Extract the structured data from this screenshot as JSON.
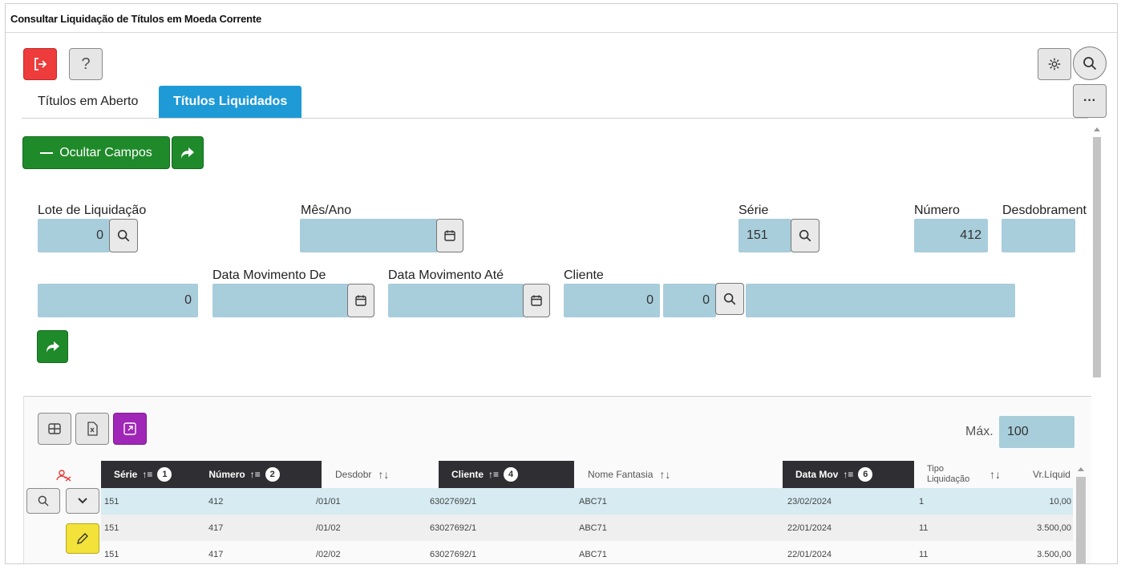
{
  "window": {
    "title": "Consultar Liquidação de Títulos em Moeda Corrente"
  },
  "toolbar": {
    "exit_icon": "exit-icon",
    "help_label": "?"
  },
  "tabs": [
    {
      "label": "Títulos em Aberto",
      "active": false
    },
    {
      "label": "Títulos Liquidados",
      "active": true
    }
  ],
  "actions": {
    "hide_fields_label": "Ocultar Campos",
    "more_label": "···"
  },
  "form": {
    "lote_label": "Lote de Liquidação",
    "lote_value": "0",
    "mesano_label": "Mês/Ano",
    "mesano_value": "",
    "serie_label": "Série",
    "serie_value": "151",
    "numero_label": "Número",
    "numero_value": "412",
    "desdobramento_label": "Desdobrament",
    "desdobramento_value": "",
    "unlabeled_value": "0",
    "data_de_label": "Data Movimento De",
    "data_de_value": "",
    "data_ate_label": "Data Movimento Até",
    "data_ate_value": "",
    "cliente_label": "Cliente",
    "cliente_code": "0",
    "cliente_sub": "0",
    "cliente_name": ""
  },
  "grid": {
    "max_label": "Máx.",
    "max_value": "100",
    "columns": [
      {
        "label": "Série",
        "sort": "1"
      },
      {
        "label": "Número",
        "sort": "2"
      },
      {
        "label": "Desdobr"
      },
      {
        "label": "Cliente",
        "sort": "4"
      },
      {
        "label": "Nome Fantasia"
      },
      {
        "label": "Data Mov",
        "sort": "6"
      },
      {
        "label": "Tipo Liquidação"
      },
      {
        "label": "Vr.Líquid"
      }
    ],
    "rows": [
      {
        "serie": "151",
        "numero": "412",
        "desdobr": "/01/01",
        "cliente": "63027692/1",
        "fantasia": "ABC71",
        "data": "23/02/2024",
        "tipo": "1",
        "valor": "10,00"
      },
      {
        "serie": "151",
        "numero": "417",
        "desdobr": "/01/02",
        "cliente": "63027692/1",
        "fantasia": "ABC71",
        "data": "22/01/2024",
        "tipo": "11",
        "valor": "3.500,00"
      },
      {
        "serie": "151",
        "numero": "417",
        "desdobr": "/02/02",
        "cliente": "63027692/1",
        "fantasia": "ABC71",
        "data": "22/01/2024",
        "tipo": "11",
        "valor": "3.500,00"
      }
    ]
  },
  "colors": {
    "accent": "#1e9ad6",
    "field": "#a8cddb",
    "green": "#1f8a2a",
    "red": "#ee3b3b",
    "purple": "#a026b8",
    "edit": "#f2e23a"
  }
}
